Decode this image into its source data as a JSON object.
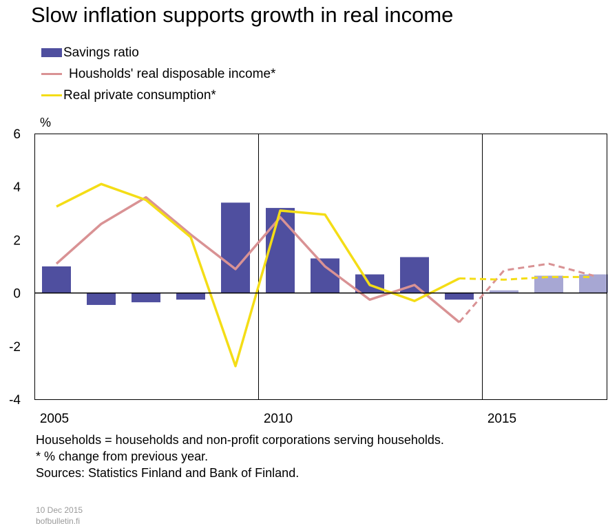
{
  "title": "Slow inflation supports growth in real income",
  "legend": [
    {
      "label": "Savings ratio",
      "kind": "bar",
      "color": "#4f4f9f"
    },
    {
      "label": "Housholds' real disposable income*",
      "kind": "line",
      "color": "#d99294"
    },
    {
      "label": "Real private consumption*",
      "kind": "line",
      "color": "#f4dd16"
    }
  ],
  "unit_label": "%",
  "notes": [
    "Households = households and non-profit corporations serving households.",
    "* % change from previous year.",
    "Sources: Statistics Finland and Bank of Finland."
  ],
  "footer": {
    "date": "10 Dec 2015",
    "site": "bofbulletin.fi"
  },
  "chart_data": {
    "type": "bar+line",
    "title": "Slow inflation supports growth in real income",
    "ylabel": "%",
    "ylim": [
      -4,
      6
    ],
    "y_ticks": [
      6,
      4,
      2,
      0,
      -2,
      -4
    ],
    "x_tick_labels": [
      "2005",
      "2010",
      "2015"
    ],
    "x_tick_years": [
      2005,
      2010,
      2015
    ],
    "years": [
      2005,
      2006,
      2007,
      2008,
      2009,
      2010,
      2011,
      2012,
      2013,
      2014,
      2015,
      2016,
      2017
    ],
    "forecast_from": 2015,
    "grid": "vertical lines at 2010 and 2015",
    "series": [
      {
        "name": "Savings ratio",
        "type": "bar",
        "color": "#4f4f9f",
        "forecast_color": "#a7a7d3",
        "values": [
          1.0,
          -0.45,
          -0.35,
          -0.25,
          3.4,
          3.2,
          1.3,
          0.7,
          1.35,
          -0.25,
          0.1,
          0.65,
          0.7
        ]
      },
      {
        "name": "Housholds' real disposable income*",
        "type": "line",
        "color": "#d99294",
        "values": [
          1.1,
          2.6,
          3.6,
          2.2,
          0.9,
          2.85,
          1.0,
          -0.25,
          0.3,
          -1.1,
          0.85,
          1.1,
          0.65
        ],
        "forecast_start_index": 9
      },
      {
        "name": "Real private consumption*",
        "type": "line",
        "color": "#f4dd16",
        "values": [
          3.25,
          4.1,
          3.5,
          2.1,
          -2.75,
          3.1,
          2.95,
          0.3,
          -0.3,
          0.55,
          0.5,
          0.6,
          0.6
        ],
        "forecast_start_index": 9
      }
    ]
  }
}
